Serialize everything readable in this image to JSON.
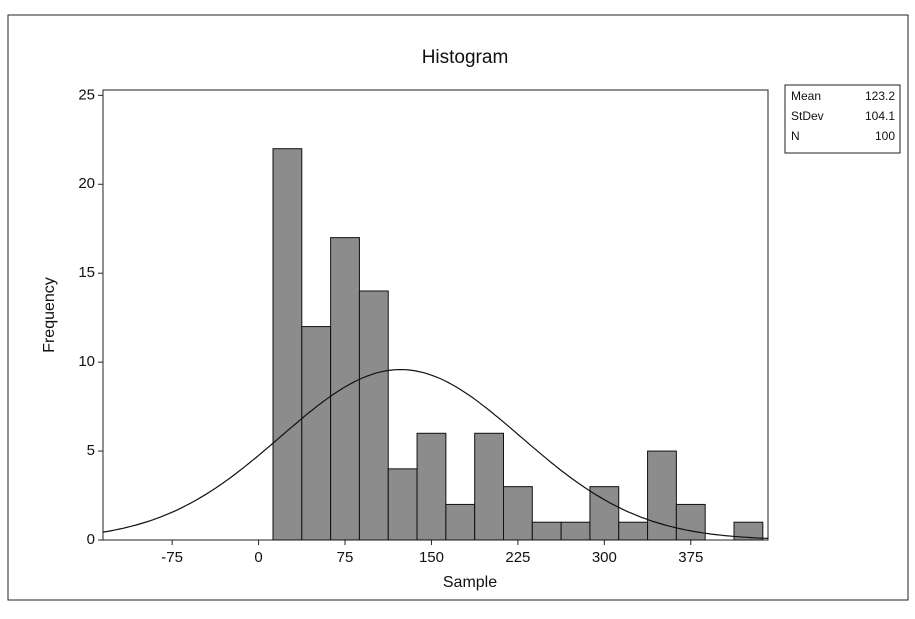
{
  "chart_data": {
    "type": "histogram",
    "title": "Histogram",
    "x_label": "Sample",
    "y_label": "Frequency",
    "bins": [
      12.5,
      37.5,
      62.5,
      87.5,
      112.5,
      137.5,
      162.5,
      187.5,
      212.5,
      237.5,
      262.5,
      287.5,
      312.5,
      337.5,
      362.5,
      387.5,
      412.5,
      437.5
    ],
    "counts": [
      22,
      12,
      17,
      14,
      4,
      6,
      2,
      6,
      3,
      1,
      1,
      3,
      1,
      5,
      2,
      0,
      1
    ],
    "color": "#8c8c8c",
    "xlim": [
      -135,
      442
    ],
    "xticks": [
      -75,
      0,
      75,
      150,
      225,
      300,
      375
    ],
    "ylim": [
      0,
      25.3
    ],
    "yticks": [
      0,
      5,
      10,
      15,
      20,
      25
    ],
    "stats": [
      {
        "label": "Mean",
        "value": 123.2
      },
      {
        "label": "StDev",
        "value": 104.1
      },
      {
        "label": "N",
        "value": 100
      }
    ],
    "fit": "normal"
  }
}
